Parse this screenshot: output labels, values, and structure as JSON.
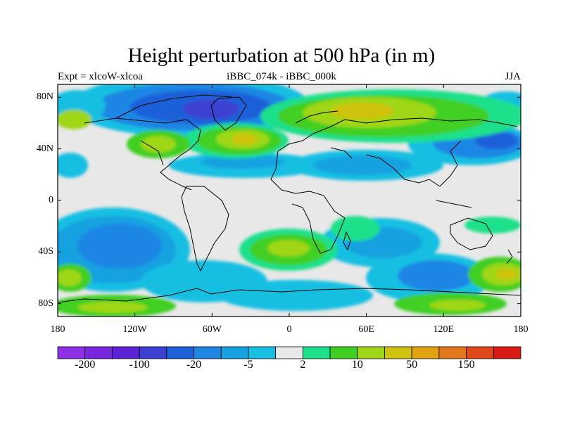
{
  "title": "Height perturbation at 500 hPa (in m)",
  "subtitle_left": "Expt = xlcoW-xlcoa",
  "subtitle_center": "iBBC_074k - iBBC_000k",
  "subtitle_right": "JJA",
  "map": {
    "lon_range": [
      -180,
      180
    ],
    "lat_range": [
      -90,
      90
    ],
    "y_ticks": [
      {
        "lat": 80,
        "label": "80N"
      },
      {
        "lat": 40,
        "label": "40N"
      },
      {
        "lat": 0,
        "label": "0"
      },
      {
        "lat": -40,
        "label": "40S"
      },
      {
        "lat": -80,
        "label": "80S"
      }
    ],
    "x_ticks": [
      {
        "lon": -180,
        "label": "180"
      },
      {
        "lon": -120,
        "label": "120W"
      },
      {
        "lon": -60,
        "label": "60W"
      },
      {
        "lon": 0,
        "label": "0"
      },
      {
        "lon": 60,
        "label": "60E"
      },
      {
        "lon": 120,
        "label": "120E"
      },
      {
        "lon": 180,
        "label": "180"
      }
    ],
    "background_color": "#e8e8e8"
  },
  "colorbar": {
    "colors": [
      "#8f2fe6",
      "#7826e0",
      "#5b22d6",
      "#3d3fd1",
      "#1e60d9",
      "#1f86e4",
      "#18a1e1",
      "#18bfe2",
      "#e8e8e8",
      "#1ee08a",
      "#3fcf20",
      "#9fd617",
      "#cfc210",
      "#e3a20f",
      "#e0771a",
      "#e0481b",
      "#d91a13"
    ],
    "labels": [
      {
        "boundary": 1,
        "text": "-200"
      },
      {
        "boundary": 3,
        "text": "-100"
      },
      {
        "boundary": 5,
        "text": "-20"
      },
      {
        "boundary": 7,
        "text": "-5"
      },
      {
        "boundary": 9,
        "text": "2"
      },
      {
        "boundary": 11,
        "text": "10"
      },
      {
        "boundary": 13,
        "text": "50"
      },
      {
        "boundary": 15,
        "text": "150"
      }
    ]
  }
}
